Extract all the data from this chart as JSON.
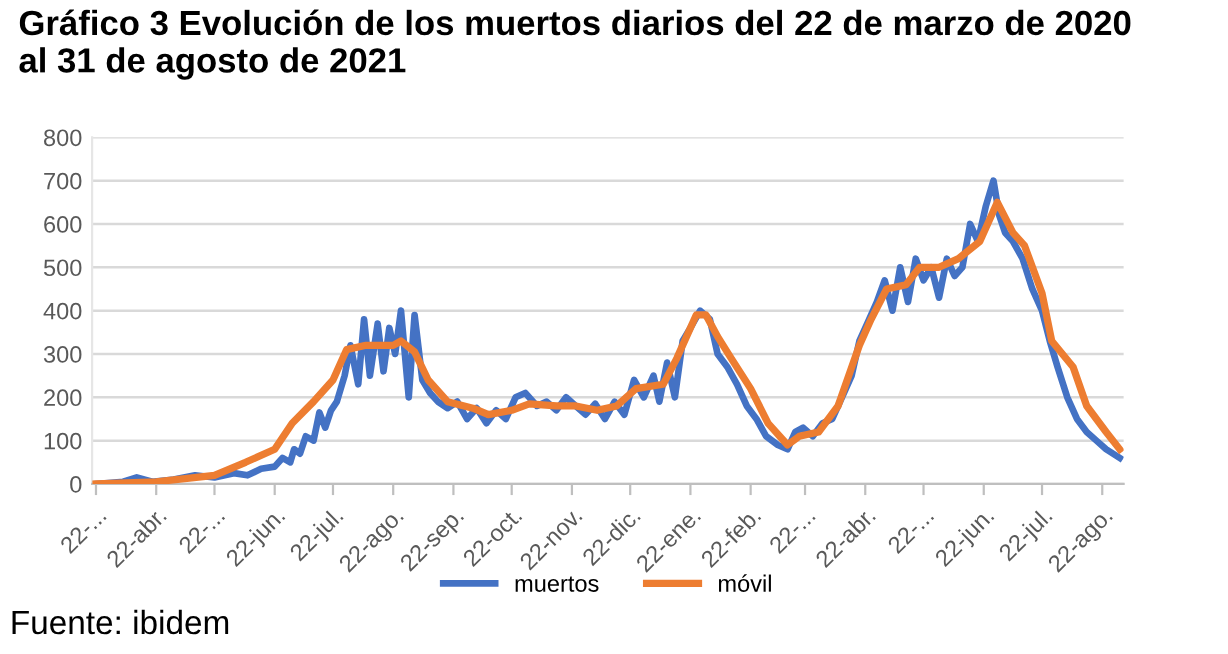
{
  "chart_data": {
    "type": "line",
    "title": "Gráfico 3 Evolución de los muertos diarios del 22 de marzo de 2020\nal 31 de agosto de 2021",
    "annotations": [
      "Fuente: ibidem"
    ],
    "series": [
      {
        "name": "muertos",
        "color": "#4472c4",
        "x": [
          "2020-03-22",
          "2020-04-05",
          "2020-04-12",
          "2020-04-20",
          "2020-05-01",
          "2020-05-12",
          "2020-05-22",
          "2020-06-01",
          "2020-06-08",
          "2020-06-15",
          "2020-06-22",
          "2020-06-26",
          "2020-06-30",
          "2020-07-02",
          "2020-07-05",
          "2020-07-08",
          "2020-07-12",
          "2020-07-15",
          "2020-07-18",
          "2020-07-21",
          "2020-07-24",
          "2020-07-26",
          "2020-07-28",
          "2020-07-31",
          "2020-08-04",
          "2020-08-07",
          "2020-08-10",
          "2020-08-14",
          "2020-08-17",
          "2020-08-20",
          "2020-08-23",
          "2020-08-26",
          "2020-08-30",
          "2020-09-02",
          "2020-09-06",
          "2020-09-10",
          "2020-09-14",
          "2020-09-19",
          "2020-09-24",
          "2020-09-29",
          "2020-10-04",
          "2020-10-09",
          "2020-10-14",
          "2020-10-19",
          "2020-10-24",
          "2020-10-29",
          "2020-11-04",
          "2020-11-09",
          "2020-11-14",
          "2020-11-19",
          "2020-11-24",
          "2020-11-29",
          "2020-12-04",
          "2020-12-09",
          "2020-12-14",
          "2020-12-19",
          "2020-12-24",
          "2020-12-29",
          "2021-01-03",
          "2021-01-06",
          "2021-01-10",
          "2021-01-14",
          "2021-01-18",
          "2021-01-22",
          "2021-01-27",
          "2021-02-01",
          "2021-02-05",
          "2021-02-10",
          "2021-02-15",
          "2021-02-20",
          "2021-02-25",
          "2021-03-02",
          "2021-03-08",
          "2021-03-13",
          "2021-03-17",
          "2021-03-21",
          "2021-03-26",
          "2021-03-31",
          "2021-04-05",
          "2021-04-10",
          "2021-04-15",
          "2021-04-19",
          "2021-04-24",
          "2021-04-28",
          "2021-05-02",
          "2021-05-06",
          "2021-05-10",
          "2021-05-14",
          "2021-05-18",
          "2021-05-22",
          "2021-05-26",
          "2021-05-30",
          "2021-06-03",
          "2021-06-07",
          "2021-06-11",
          "2021-06-15",
          "2021-06-19",
          "2021-06-23",
          "2021-06-27",
          "2021-06-30",
          "2021-07-03",
          "2021-07-07",
          "2021-07-12",
          "2021-07-17",
          "2021-07-22",
          "2021-07-26",
          "2021-07-30",
          "2021-08-04",
          "2021-08-09",
          "2021-08-14",
          "2021-08-19",
          "2021-08-24",
          "2021-08-31"
        ],
        "values": [
          0,
          5,
          15,
          5,
          10,
          20,
          15,
          25,
          20,
          35,
          40,
          60,
          50,
          80,
          70,
          110,
          100,
          165,
          130,
          170,
          190,
          220,
          250,
          320,
          230,
          380,
          250,
          370,
          260,
          360,
          300,
          400,
          200,
          390,
          240,
          210,
          190,
          175,
          190,
          150,
          175,
          140,
          170,
          150,
          200,
          210,
          180,
          190,
          170,
          200,
          180,
          160,
          185,
          150,
          190,
          160,
          240,
          200,
          250,
          190,
          280,
          200,
          330,
          360,
          400,
          380,
          300,
          270,
          230,
          180,
          150,
          110,
          90,
          80,
          120,
          130,
          110,
          140,
          150,
          200,
          250,
          330,
          380,
          420,
          470,
          400,
          500,
          420,
          520,
          470,
          500,
          430,
          520,
          480,
          500,
          600,
          560,
          640,
          700,
          620,
          580,
          560,
          520,
          450,
          400,
          330,
          270,
          200,
          150,
          120,
          100,
          80,
          60
        ]
      },
      {
        "name": "móvil",
        "color": "#ed7d31",
        "x": [
          "2020-03-22",
          "2020-04-22",
          "2020-05-22",
          "2020-06-07",
          "2020-06-22",
          "2020-07-01",
          "2020-07-12",
          "2020-07-22",
          "2020-07-29",
          "2020-08-08",
          "2020-08-22",
          "2020-08-26",
          "2020-09-02",
          "2020-09-09",
          "2020-09-19",
          "2020-10-02",
          "2020-10-10",
          "2020-10-22",
          "2020-10-31",
          "2020-11-14",
          "2020-11-24",
          "2020-12-05",
          "2020-12-15",
          "2020-12-25",
          "2021-01-08",
          "2021-01-15",
          "2021-01-25",
          "2021-01-30",
          "2021-02-05",
          "2021-02-12",
          "2021-02-22",
          "2021-03-03",
          "2021-03-13",
          "2021-03-19",
          "2021-03-29",
          "2021-04-08",
          "2021-04-19",
          "2021-04-25",
          "2021-05-03",
          "2021-05-13",
          "2021-05-20",
          "2021-05-30",
          "2021-06-09",
          "2021-06-20",
          "2021-06-29",
          "2021-07-07",
          "2021-07-13",
          "2021-07-22",
          "2021-07-27",
          "2021-08-07",
          "2021-08-14",
          "2021-08-24",
          "2021-08-31"
        ],
        "values": [
          0,
          5,
          20,
          50,
          80,
          140,
          190,
          240,
          310,
          320,
          320,
          330,
          305,
          240,
          190,
          175,
          160,
          170,
          185,
          180,
          180,
          170,
          180,
          220,
          230,
          290,
          390,
          390,
          340,
          290,
          220,
          140,
          90,
          110,
          120,
          180,
          320,
          380,
          450,
          460,
          500,
          500,
          520,
          560,
          650,
          580,
          550,
          440,
          330,
          270,
          180,
          120,
          80
        ]
      }
    ],
    "xlim": [
      "2020-03-20",
      "2021-09-02"
    ],
    "xticks": [
      {
        "value": "2020-03-22",
        "label": "22-..."
      },
      {
        "value": "2020-04-22",
        "label": "22-abr."
      },
      {
        "value": "2020-05-22",
        "label": "22-..."
      },
      {
        "value": "2020-06-22",
        "label": "22-jun."
      },
      {
        "value": "2020-07-22",
        "label": "22-jul."
      },
      {
        "value": "2020-08-22",
        "label": "22-ago."
      },
      {
        "value": "2020-09-22",
        "label": "22-sep."
      },
      {
        "value": "2020-10-22",
        "label": "22-oct."
      },
      {
        "value": "2020-11-22",
        "label": "22-nov."
      },
      {
        "value": "2020-12-22",
        "label": "22-dic."
      },
      {
        "value": "2021-01-22",
        "label": "22-ene."
      },
      {
        "value": "2021-02-22",
        "label": "22-feb."
      },
      {
        "value": "2021-03-22",
        "label": "22-..."
      },
      {
        "value": "2021-04-22",
        "label": "22-abr."
      },
      {
        "value": "2021-05-22",
        "label": "22-..."
      },
      {
        "value": "2021-06-22",
        "label": "22-jun."
      },
      {
        "value": "2021-07-22",
        "label": "22-jul."
      },
      {
        "value": "2021-08-22",
        "label": "22-ago."
      }
    ],
    "ylim": [
      0,
      800
    ],
    "yticks": [
      0,
      100,
      200,
      300,
      400,
      500,
      600,
      700,
      800
    ],
    "grid": "y",
    "legend": "bottom",
    "line_style": "solid",
    "marker": "none"
  }
}
